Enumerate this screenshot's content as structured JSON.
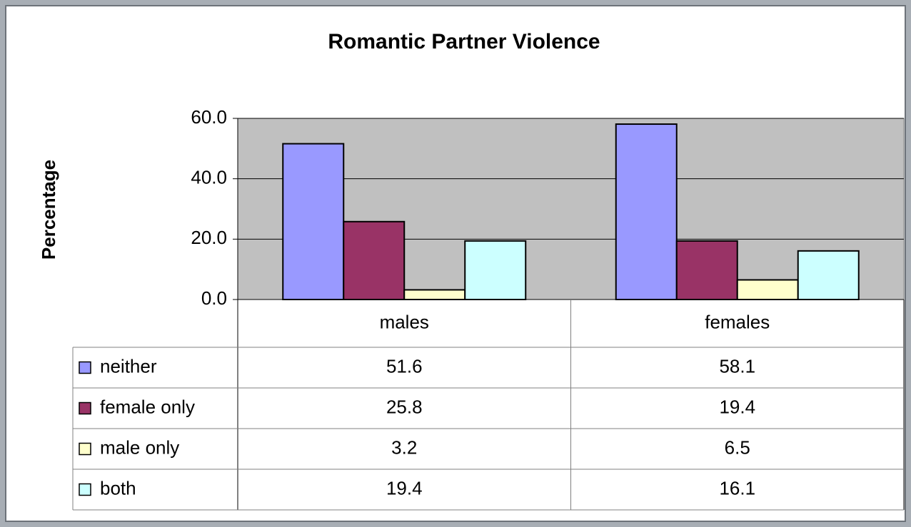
{
  "chart_data": {
    "type": "bar",
    "title": "Romantic Partner Violence",
    "y_label": "Percentage",
    "categories": [
      "males",
      "females"
    ],
    "series": [
      {
        "name": "neither",
        "color": "#9999ff",
        "values": [
          51.6,
          58.1
        ]
      },
      {
        "name": "female only",
        "color": "#993366",
        "values": [
          25.8,
          19.4
        ]
      },
      {
        "name": "male only",
        "color": "#ffffcc",
        "values": [
          3.2,
          6.5
        ]
      },
      {
        "name": "both",
        "color": "#ccffff",
        "values": [
          19.4,
          16.1
        ]
      }
    ],
    "ylim": [
      0,
      60
    ],
    "yticks": [
      {
        "value": 0,
        "label": "0.0"
      },
      {
        "value": 20,
        "label": "20.0"
      },
      {
        "value": 40,
        "label": "40.0"
      },
      {
        "value": 60,
        "label": "60.0"
      }
    ],
    "grid": true,
    "plot_background": "#c0c0c0",
    "legend": "table"
  }
}
